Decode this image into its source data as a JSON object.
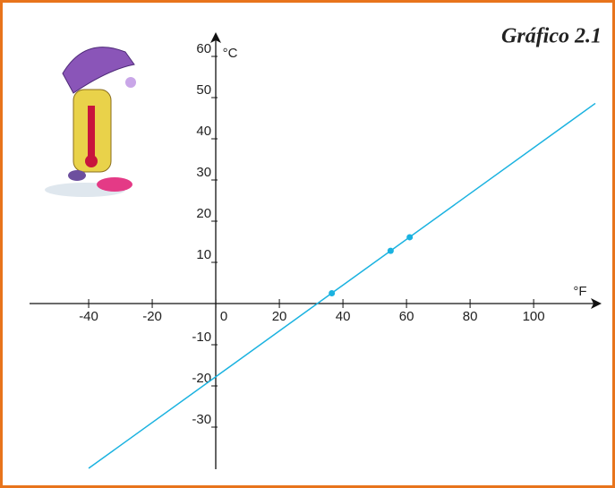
{
  "chart_data": {
    "type": "line",
    "title": "Gráfico 2.1",
    "x_label": "°F",
    "y_label": "°C",
    "xlim": [
      -58.6,
      119.4
    ],
    "ylim": [
      -40,
      65
    ],
    "xticks": [
      -40,
      -20,
      0,
      20,
      40,
      60,
      80,
      100
    ],
    "yticks": [
      -30,
      -20,
      -10,
      10,
      20,
      30,
      40,
      50,
      60
    ],
    "series": [
      {
        "x": [
          -40,
          119.4
        ],
        "values": [
          -40,
          48.6
        ],
        "color": "#1ab2e0",
        "markers": false
      },
      {
        "x": [
          36.5,
          55,
          61
        ],
        "values": [
          2.5,
          12.8,
          16.1
        ],
        "color": "#1ab2e0",
        "markers": true
      }
    ]
  }
}
